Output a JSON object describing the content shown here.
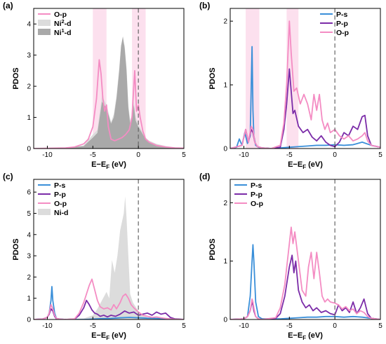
{
  "chart_data": [
    {
      "panel_label": "(a)",
      "type": "area",
      "xlabel": {
        "main": "E−E",
        "sub": "F",
        "unit": " (eV)"
      },
      "ylabel": "PDOS",
      "xlim": [
        -11.5,
        5
      ],
      "ylim": [
        0,
        4.5
      ],
      "xticks": [
        -10,
        -5,
        0,
        5
      ],
      "yticks": [
        0,
        1,
        2,
        3,
        4
      ],
      "fermi_line_x": 0,
      "legend_position": "top-left",
      "highlight_bands": [
        [
          -5.0,
          -3.5
        ],
        [
          -0.7,
          0.8
        ]
      ],
      "series": [
        {
          "name_base": "Ni",
          "name_sup": "2",
          "name_suffix": "-d",
          "style": "fill",
          "color": "#dcdcdc",
          "x": [
            -11.5,
            -8,
            -6,
            -5,
            -4.5,
            -4,
            -3.5,
            -3.0,
            -2.7,
            -2.4,
            -2.1,
            -1.9,
            -1.7,
            -1.5,
            -1.3,
            -1.1,
            -0.9,
            -0.7,
            -0.5,
            -0.3,
            0,
            0.4,
            0.8,
            1.2,
            1.6,
            2,
            3,
            4,
            5
          ],
          "y": [
            0,
            0.02,
            0.1,
            0.45,
            0.6,
            1.7,
            1.4,
            0.85,
            1.1,
            1.7,
            2.6,
            3.3,
            3.5,
            3.3,
            2.6,
            1.4,
            0.9,
            1.1,
            1.5,
            1.0,
            0.8,
            0.55,
            0.35,
            0.25,
            0.2,
            0.15,
            0.08,
            0.04,
            0.02
          ]
        },
        {
          "name_base": "Ni",
          "name_sup": "1",
          "name_suffix": "-d",
          "style": "fill",
          "color": "#a9a9a9",
          "x": [
            -11.5,
            -8,
            -6,
            -5,
            -4.5,
            -4,
            -3.5,
            -3.0,
            -2.7,
            -2.4,
            -2.1,
            -1.9,
            -1.7,
            -1.5,
            -1.3,
            -1.1,
            -0.9,
            -0.7,
            -0.5,
            -0.3,
            0,
            0.4,
            0.8,
            1.2,
            1.6,
            2,
            3,
            4,
            5
          ],
          "y": [
            0,
            0.02,
            0.08,
            0.35,
            0.5,
            1.5,
            1.3,
            0.8,
            1.0,
            1.6,
            2.5,
            3.3,
            3.6,
            3.2,
            2.5,
            1.3,
            0.8,
            1.0,
            1.4,
            0.9,
            0.7,
            0.5,
            0.3,
            0.2,
            0.15,
            0.1,
            0.06,
            0.03,
            0.01
          ]
        },
        {
          "name_base": "O-p",
          "name_sup": "",
          "name_suffix": "",
          "style": "line",
          "color": "#f48cc3",
          "x": [
            -11.5,
            -8,
            -7,
            -6,
            -5.5,
            -5,
            -4.6,
            -4.3,
            -4.1,
            -3.9,
            -3.7,
            -3.5,
            -3.3,
            -3.0,
            -2.6,
            -2.2,
            -1.8,
            -1.4,
            -1.0,
            -0.7,
            -0.4,
            -0.2,
            0,
            0.2,
            0.5,
            0.8,
            1.2,
            1.6,
            2,
            3,
            4,
            5
          ],
          "y": [
            0,
            0.02,
            0.05,
            0.15,
            0.3,
            0.7,
            1.6,
            2.85,
            2.4,
            1.6,
            1.2,
            1.4,
            0.7,
            0.3,
            0.25,
            0.3,
            0.35,
            0.45,
            0.6,
            1.0,
            2.5,
            1.2,
            1.4,
            1.0,
            0.55,
            0.3,
            0.2,
            0.15,
            0.1,
            0.05,
            0.02,
            0.01
          ]
        }
      ]
    },
    {
      "panel_label": "(b)",
      "type": "line",
      "xlabel": {
        "main": "E−E",
        "sub": "F",
        "unit": " (eV)"
      },
      "ylabel": "PDOS",
      "xlim": [
        -11.5,
        5
      ],
      "ylim": [
        0,
        2.2
      ],
      "xticks": [
        -10,
        -5,
        0,
        5
      ],
      "yticks": [
        0,
        1,
        2
      ],
      "fermi_line_x": 0,
      "legend_position": "top-right",
      "highlight_bands": [
        [
          -9.8,
          -8.3
        ],
        [
          -5.3,
          -4.0
        ]
      ],
      "series": [
        {
          "name_base": "P-s",
          "name_sup": "",
          "name_suffix": "",
          "style": "line",
          "color": "#3a8fd9",
          "x": [
            -11.5,
            -10.8,
            -10.5,
            -10.2,
            -9.9,
            -9.6,
            -9.3,
            -9.1,
            -9.0,
            -8.9,
            -8.7,
            -8.4,
            -8,
            -7,
            -6,
            -5,
            -4,
            -3,
            -2,
            -1,
            0,
            1,
            2,
            3,
            4,
            5
          ],
          "y": [
            0,
            0.02,
            0.15,
            0.05,
            0.25,
            0.08,
            0.2,
            1.6,
            0.6,
            0.2,
            0.05,
            0.02,
            0.01,
            0,
            0.01,
            0.02,
            0.03,
            0.04,
            0.05,
            0.05,
            0.06,
            0.05,
            0.06,
            0.1,
            0.05,
            0.02
          ]
        },
        {
          "name_base": "P-p",
          "name_sup": "",
          "name_suffix": "",
          "style": "line",
          "color": "#7b2ca8",
          "x": [
            -11.5,
            -10.2,
            -9.8,
            -9.5,
            -9.2,
            -9.0,
            -8.8,
            -8.5,
            -8,
            -7,
            -6,
            -5.6,
            -5.3,
            -5.0,
            -4.8,
            -4.6,
            -4.4,
            -4.0,
            -3.5,
            -3.0,
            -2.5,
            -2.0,
            -1.5,
            -1.0,
            -0.5,
            0,
            0.5,
            1.0,
            1.5,
            2.0,
            2.5,
            3.0,
            3.3,
            3.6,
            4,
            5
          ],
          "y": [
            0,
            0.05,
            0.3,
            0.1,
            0.3,
            0.25,
            0.1,
            0.03,
            0.01,
            0,
            0.02,
            0.3,
            0.7,
            1.25,
            0.9,
            0.55,
            0.6,
            0.35,
            0.25,
            0.3,
            0.18,
            0.12,
            0.2,
            0.1,
            0.05,
            0.03,
            0.1,
            0.25,
            0.2,
            0.35,
            0.3,
            0.5,
            0.52,
            0.2,
            0.05,
            0.02
          ]
        },
        {
          "name_base": "O-p",
          "name_sup": "",
          "name_suffix": "",
          "style": "line",
          "color": "#f48cc3",
          "x": [
            -11.5,
            -10.2,
            -9.8,
            -9.5,
            -9.2,
            -9.0,
            -8.8,
            -8.5,
            -8,
            -7,
            -6,
            -5.6,
            -5.3,
            -5.0,
            -4.8,
            -4.5,
            -4.2,
            -3.8,
            -3.4,
            -3.0,
            -2.6,
            -2.3,
            -2.0,
            -1.7,
            -1.4,
            -1.1,
            -0.8,
            -0.5,
            0,
            0.5,
            1.0,
            1.5,
            2.0,
            2.5,
            3.0,
            3.3,
            3.6,
            4,
            5
          ],
          "y": [
            0,
            0.05,
            0.3,
            0.1,
            0.35,
            0.3,
            0.1,
            0.03,
            0.01,
            0,
            0.05,
            0.4,
            1.0,
            2.0,
            1.5,
            0.9,
            0.95,
            0.7,
            0.85,
            0.7,
            0.45,
            0.85,
            0.6,
            0.85,
            0.45,
            0.3,
            0.4,
            0.25,
            0.3,
            0.2,
            0.15,
            0.2,
            0.12,
            0.15,
            0.2,
            0.25,
            0.12,
            0.05,
            0.02
          ]
        }
      ]
    },
    {
      "panel_label": "(c)",
      "type": "area",
      "xlabel": {
        "main": "E−E",
        "sub": "F",
        "unit": " (eV)"
      },
      "ylabel": "PDOS",
      "xlim": [
        -11.5,
        5
      ],
      "ylim": [
        0,
        6.6
      ],
      "xticks": [
        -10,
        -5,
        0,
        5
      ],
      "yticks": [
        0,
        1,
        2,
        3,
        4,
        5,
        6
      ],
      "fermi_line_x": 0,
      "legend_position": "top-left",
      "highlight_bands": [],
      "series": [
        {
          "name_base": "Ni-d",
          "name_sup": "",
          "name_suffix": "",
          "style": "fill",
          "color": "#dcdcdc",
          "x": [
            -11.5,
            -8,
            -6,
            -5,
            -4.5,
            -4,
            -3.5,
            -3.2,
            -2.9,
            -2.6,
            -2.3,
            -2.0,
            -1.8,
            -1.6,
            -1.45,
            -1.3,
            -1.1,
            -0.9,
            -0.6,
            -0.3,
            0,
            0.5,
            1,
            2,
            3,
            4,
            5
          ],
          "y": [
            0,
            0.02,
            0.05,
            0.2,
            0.5,
            0.9,
            1.3,
            1.0,
            2.8,
            2.2,
            3.0,
            4.2,
            4.6,
            5.0,
            5.8,
            4.8,
            3.0,
            1.2,
            0.8,
            0.6,
            0.4,
            0.2,
            0.1,
            0.05,
            0.03,
            0.02,
            0
          ]
        },
        {
          "name_base": "P-s",
          "name_sup": "",
          "name_suffix": "",
          "style": "line",
          "color": "#3a8fd9",
          "x": [
            -11.5,
            -10.5,
            -10,
            -9.8,
            -9.6,
            -9.5,
            -9.4,
            -9.2,
            -9.0,
            -8.5,
            -8,
            -6,
            -5,
            -4,
            -3,
            -2,
            -1,
            0,
            1,
            2,
            3,
            4,
            5
          ],
          "y": [
            0,
            0.02,
            0.1,
            0.3,
            0.9,
            1.55,
            0.9,
            0.3,
            0.05,
            0.01,
            0,
            0,
            0.02,
            0.04,
            0.05,
            0.08,
            0.1,
            0.08,
            0.06,
            0.05,
            0.04,
            0.02,
            0
          ]
        },
        {
          "name_base": "P-p",
          "name_sup": "",
          "name_suffix": "",
          "style": "line",
          "color": "#7b2ca8",
          "x": [
            -11.5,
            -10.5,
            -10,
            -9.8,
            -9.6,
            -9.5,
            -9.4,
            -9.2,
            -9.0,
            -8.5,
            -8,
            -7,
            -6.5,
            -6,
            -5.7,
            -5.4,
            -5.1,
            -4.8,
            -4.5,
            -4.2,
            -3.8,
            -3.4,
            -3.0,
            -2.5,
            -2.0,
            -1.5,
            -1.0,
            -0.5,
            0,
            0.5,
            1.0,
            1.5,
            2.0,
            2.5,
            3.0,
            3.5,
            4,
            5
          ],
          "y": [
            0,
            0.02,
            0.1,
            0.25,
            0.5,
            0.45,
            0.4,
            0.15,
            0.03,
            0.01,
            0,
            0.02,
            0.2,
            0.55,
            0.9,
            0.7,
            0.45,
            0.3,
            0.25,
            0.15,
            0.2,
            0.12,
            0.2,
            0.15,
            0.25,
            0.4,
            0.3,
            0.35,
            0.2,
            0.25,
            0.3,
            0.2,
            0.35,
            0.25,
            0.3,
            0.1,
            0.03,
            0
          ]
        },
        {
          "name_base": "O-p",
          "name_sup": "",
          "name_suffix": "",
          "style": "line",
          "color": "#f48cc3",
          "x": [
            -11.5,
            -10.5,
            -10,
            -9.8,
            -9.6,
            -9.5,
            -9.4,
            -9.2,
            -9.0,
            -8.5,
            -8,
            -7,
            -6.5,
            -6,
            -5.7,
            -5.4,
            -5.1,
            -4.8,
            -4.5,
            -4.2,
            -3.8,
            -3.4,
            -3.0,
            -2.7,
            -2.4,
            -2.0,
            -1.7,
            -1.4,
            -1.1,
            -0.8,
            -0.5,
            0,
            0.5,
            1.0,
            1.5,
            2.0,
            2.5,
            3.0,
            3.5,
            4,
            5
          ],
          "y": [
            0,
            0.02,
            0.1,
            0.3,
            0.7,
            0.6,
            0.5,
            0.2,
            0.05,
            0.01,
            0,
            0.03,
            0.3,
            0.8,
            1.2,
            1.6,
            1.9,
            1.4,
            0.9,
            0.6,
            0.5,
            0.55,
            0.45,
            0.7,
            0.5,
            0.8,
            1.1,
            1.2,
            1.0,
            0.7,
            0.55,
            0.35,
            0.2,
            0.15,
            0.1,
            0.12,
            0.08,
            0.05,
            0.03,
            0.01,
            0
          ]
        }
      ]
    },
    {
      "panel_label": "(d)",
      "type": "line",
      "xlabel": {
        "main": "E−E",
        "sub": "F",
        "unit": " (eV)"
      },
      "ylabel": "PDOS",
      "xlim": [
        -11.5,
        5
      ],
      "ylim": [
        0,
        2.4
      ],
      "xticks": [
        -10,
        -5,
        0,
        5
      ],
      "yticks": [
        0,
        1,
        2
      ],
      "fermi_line_x": 0,
      "legend_position": "top-left",
      "highlight_bands": [],
      "series": [
        {
          "name_base": "P-s",
          "name_sup": "",
          "name_suffix": "",
          "style": "line",
          "color": "#3a8fd9",
          "x": [
            -11.5,
            -10,
            -9.6,
            -9.3,
            -9.1,
            -9.0,
            -8.9,
            -8.7,
            -8.4,
            -8,
            -6,
            -5,
            -4,
            -3,
            -2,
            -1,
            0,
            1,
            2,
            3,
            4,
            5
          ],
          "y": [
            0,
            0.01,
            0.05,
            0.4,
            1.0,
            1.28,
            1.0,
            0.3,
            0.05,
            0.01,
            0.01,
            0.02,
            0.03,
            0.04,
            0.04,
            0.05,
            0.05,
            0.04,
            0.05,
            0.04,
            0.02,
            0
          ]
        },
        {
          "name_base": "P-p",
          "name_sup": "",
          "name_suffix": "",
          "style": "line",
          "color": "#7b2ca8",
          "x": [
            -11.5,
            -10,
            -9.6,
            -9.3,
            -9.1,
            -9.0,
            -8.9,
            -8.7,
            -8.4,
            -8,
            -6.5,
            -6,
            -5.5,
            -5.0,
            -4.7,
            -4.5,
            -4.3,
            -4.0,
            -3.6,
            -3.2,
            -2.8,
            -2.4,
            -2.0,
            -1.5,
            -1.0,
            -0.5,
            0,
            0.4,
            0.8,
            1.2,
            1.6,
            2.0,
            2.4,
            2.8,
            3.2,
            3.6,
            4,
            5
          ],
          "y": [
            0,
            0.01,
            0.05,
            0.15,
            0.3,
            0.25,
            0.15,
            0.05,
            0.01,
            0,
            0.02,
            0.1,
            0.4,
            0.9,
            1.1,
            0.8,
            1.0,
            0.5,
            0.3,
            0.2,
            0.25,
            0.15,
            0.2,
            0.12,
            0.15,
            0.1,
            0.08,
            0.25,
            0.15,
            0.2,
            0.12,
            0.3,
            0.1,
            0.2,
            0.35,
            0.1,
            0.02,
            0
          ]
        },
        {
          "name_base": "O-p",
          "name_sup": "",
          "name_suffix": "",
          "style": "line",
          "color": "#f48cc3",
          "x": [
            -11.5,
            -10,
            -9.6,
            -9.3,
            -9.1,
            -9.0,
            -8.9,
            -8.7,
            -8.4,
            -8,
            -6.5,
            -6,
            -5.5,
            -5.0,
            -4.8,
            -4.6,
            -4.4,
            -4.0,
            -3.6,
            -3.2,
            -2.9,
            -2.6,
            -2.3,
            -2.0,
            -1.7,
            -1.4,
            -1.1,
            -0.8,
            -0.5,
            0,
            0.4,
            0.8,
            1.2,
            1.6,
            2.0,
            2.4,
            2.8,
            3.2,
            3.6,
            4,
            5
          ],
          "y": [
            0,
            0.01,
            0.05,
            0.15,
            0.35,
            0.3,
            0.2,
            0.05,
            0.01,
            0,
            0.03,
            0.2,
            0.6,
            1.3,
            1.58,
            1.3,
            1.5,
            1.0,
            0.5,
            0.4,
            0.9,
            1.15,
            0.7,
            1.15,
            0.8,
            0.4,
            0.3,
            0.35,
            0.3,
            0.28,
            0.25,
            0.18,
            0.22,
            0.15,
            0.18,
            0.1,
            0.15,
            0.12,
            0.05,
            0.02,
            0
          ]
        }
      ]
    }
  ]
}
